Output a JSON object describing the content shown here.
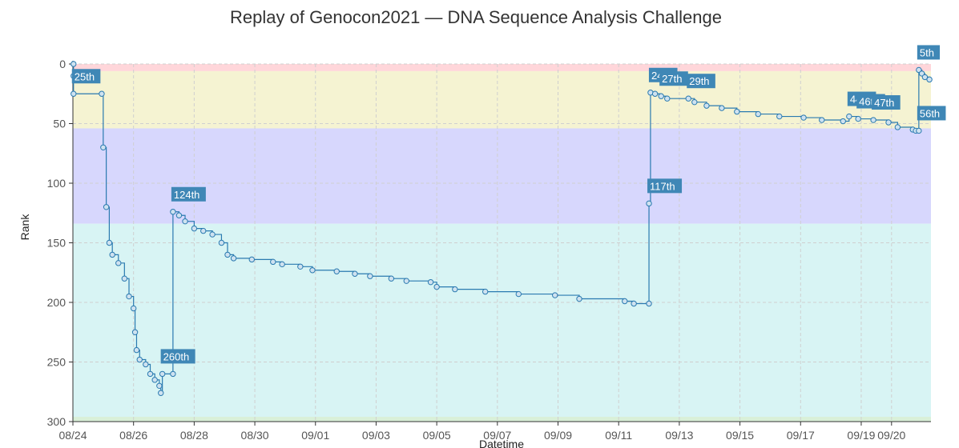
{
  "chart_data": {
    "type": "line",
    "title": "Replay of Genocon2021 — DNA Sequence Analysis Challenge",
    "xlabel": "Datetime",
    "ylabel": "Rank",
    "ylim": [
      0,
      300
    ],
    "y_inverted": true,
    "y_ticks": [
      0,
      50,
      100,
      150,
      200,
      250,
      300
    ],
    "x_ticks": [
      "08/24",
      "08/26",
      "08/28",
      "08/30",
      "09/01",
      "09/03",
      "09/05",
      "09/07",
      "09/09",
      "09/11",
      "09/13",
      "09/15",
      "09/17",
      "09/19",
      "09/20"
    ],
    "x_tick_days": [
      0,
      2,
      4,
      6,
      8,
      10,
      12,
      14,
      16,
      18,
      20,
      22,
      24,
      26,
      27
    ],
    "grid": true,
    "bands": [
      {
        "from": 0,
        "to": 6,
        "color": "#ffd6da"
      },
      {
        "from": 6,
        "to": 54,
        "color": "#f5f3d2"
      },
      {
        "from": 54,
        "to": 134,
        "color": "#d7d7fd"
      },
      {
        "from": 134,
        "to": 296,
        "color": "#d8f4f4"
      },
      {
        "from": 296,
        "to": 300,
        "color": "#d9f0d8"
      }
    ],
    "series": [
      {
        "color": "#2a7ab0",
        "points": [
          {
            "day": 0.02,
            "rank": 0
          },
          {
            "day": 0.02,
            "rank": 10
          },
          {
            "day": 0.02,
            "rank": 25
          },
          {
            "day": 0.95,
            "rank": 25
          },
          {
            "day": 1.0,
            "rank": 70
          },
          {
            "day": 1.1,
            "rank": 120
          },
          {
            "day": 1.2,
            "rank": 150
          },
          {
            "day": 1.3,
            "rank": 160
          },
          {
            "day": 1.5,
            "rank": 167
          },
          {
            "day": 1.7,
            "rank": 180
          },
          {
            "day": 1.85,
            "rank": 195
          },
          {
            "day": 2.0,
            "rank": 205
          },
          {
            "day": 2.05,
            "rank": 225
          },
          {
            "day": 2.1,
            "rank": 240
          },
          {
            "day": 2.2,
            "rank": 248
          },
          {
            "day": 2.4,
            "rank": 252
          },
          {
            "day": 2.55,
            "rank": 260
          },
          {
            "day": 2.7,
            "rank": 265
          },
          {
            "day": 2.85,
            "rank": 270
          },
          {
            "day": 2.9,
            "rank": 276
          },
          {
            "day": 2.95,
            "rank": 260
          },
          {
            "day": 3.3,
            "rank": 260
          },
          {
            "day": 3.3,
            "rank": 124
          },
          {
            "day": 3.5,
            "rank": 127
          },
          {
            "day": 3.7,
            "rank": 132
          },
          {
            "day": 4.0,
            "rank": 138
          },
          {
            "day": 4.3,
            "rank": 140
          },
          {
            "day": 4.6,
            "rank": 143
          },
          {
            "day": 4.9,
            "rank": 150
          },
          {
            "day": 5.1,
            "rank": 160
          },
          {
            "day": 5.3,
            "rank": 163
          },
          {
            "day": 5.9,
            "rank": 164
          },
          {
            "day": 6.6,
            "rank": 166
          },
          {
            "day": 6.9,
            "rank": 168
          },
          {
            "day": 7.5,
            "rank": 170
          },
          {
            "day": 7.9,
            "rank": 173
          },
          {
            "day": 8.7,
            "rank": 174
          },
          {
            "day": 9.3,
            "rank": 176
          },
          {
            "day": 9.8,
            "rank": 178
          },
          {
            "day": 10.5,
            "rank": 180
          },
          {
            "day": 11.0,
            "rank": 182
          },
          {
            "day": 11.8,
            "rank": 183
          },
          {
            "day": 12.0,
            "rank": 187
          },
          {
            "day": 12.6,
            "rank": 189
          },
          {
            "day": 13.6,
            "rank": 191
          },
          {
            "day": 14.7,
            "rank": 193
          },
          {
            "day": 15.9,
            "rank": 194
          },
          {
            "day": 16.7,
            "rank": 197
          },
          {
            "day": 18.2,
            "rank": 199
          },
          {
            "day": 18.5,
            "rank": 201
          },
          {
            "day": 19.0,
            "rank": 201
          },
          {
            "day": 19.0,
            "rank": 117
          },
          {
            "day": 19.05,
            "rank": 24
          },
          {
            "day": 19.2,
            "rank": 25
          },
          {
            "day": 19.4,
            "rank": 27
          },
          {
            "day": 19.6,
            "rank": 29
          },
          {
            "day": 20.3,
            "rank": 29
          },
          {
            "day": 20.5,
            "rank": 32
          },
          {
            "day": 20.9,
            "rank": 35
          },
          {
            "day": 21.4,
            "rank": 37
          },
          {
            "day": 21.9,
            "rank": 40
          },
          {
            "day": 22.6,
            "rank": 42
          },
          {
            "day": 23.3,
            "rank": 44
          },
          {
            "day": 24.1,
            "rank": 45
          },
          {
            "day": 24.7,
            "rank": 47
          },
          {
            "day": 25.4,
            "rank": 48
          },
          {
            "day": 25.6,
            "rank": 44
          },
          {
            "day": 25.9,
            "rank": 46
          },
          {
            "day": 26.4,
            "rank": 47
          },
          {
            "day": 26.9,
            "rank": 49
          },
          {
            "day": 27.2,
            "rank": 53
          },
          {
            "day": 27.7,
            "rank": 55
          },
          {
            "day": 27.8,
            "rank": 56
          },
          {
            "day": 27.9,
            "rank": 56
          },
          {
            "day": 27.9,
            "rank": 5
          },
          {
            "day": 28.0,
            "rank": 8
          },
          {
            "day": 28.1,
            "rank": 11
          },
          {
            "day": 28.25,
            "rank": 13
          }
        ]
      }
    ],
    "annotations": [
      {
        "text": "25th",
        "day": 0.02,
        "rank": 25
      },
      {
        "text": "260th",
        "day": 2.95,
        "rank": 260
      },
      {
        "text": "124th",
        "day": 3.3,
        "rank": 124
      },
      {
        "text": "117th",
        "day": 19.0,
        "rank": 117
      },
      {
        "text": "24th",
        "day": 19.05,
        "rank": 24
      },
      {
        "text": "27th",
        "day": 19.4,
        "rank": 27
      },
      {
        "text": "29th",
        "day": 20.3,
        "rank": 29
      },
      {
        "text": "44th",
        "day": 25.6,
        "rank": 44
      },
      {
        "text": "46th",
        "day": 25.9,
        "rank": 46
      },
      {
        "text": "47th",
        "day": 26.4,
        "rank": 47
      },
      {
        "text": "56th",
        "day": 27.9,
        "rank": 56
      },
      {
        "text": "5th",
        "day": 27.9,
        "rank": 5
      }
    ]
  }
}
